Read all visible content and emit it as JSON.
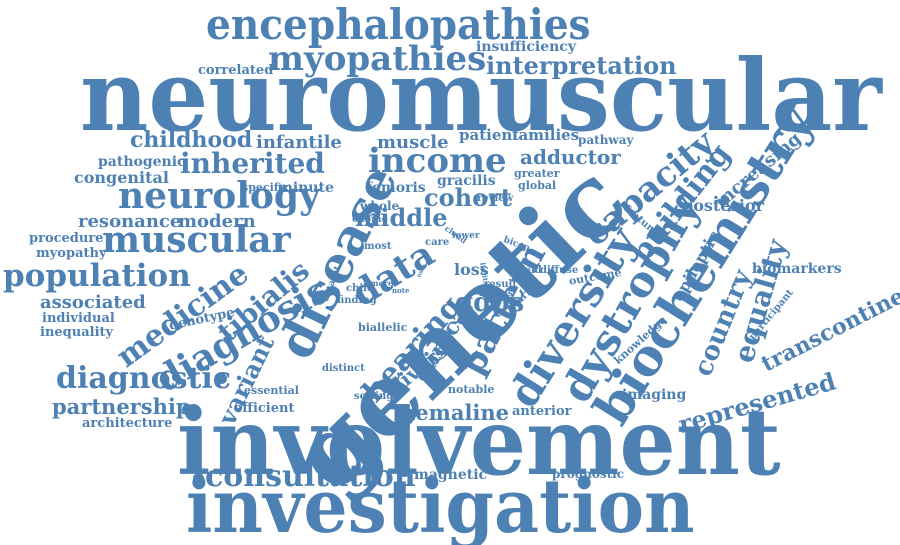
{
  "word_cloud": {
    "color": "#4d80b3",
    "words": {
      "neuromuscular": "neuromuscular",
      "genetic": "genetic",
      "involvement": "involvement",
      "investigation": "investigation",
      "encephalopathies": "encephalopathies",
      "biochemistry": "biochemistry",
      "disease": "disease",
      "dystrophy": "dystrophy",
      "diversity": "diversity",
      "myopathies": "myopathies",
      "neurology": "neurology",
      "muscular": "muscular",
      "income": "income",
      "inherited": "inherited",
      "population": "population",
      "diagnosis": "diagnosis",
      "medicine": "medicine",
      "diagnostic": "diagnostic",
      "consultation": "consultation",
      "interpretation": "interpretation",
      "childhood": "childhood",
      "capacity": "capacity",
      "building": "building",
      "pattern": "pattern",
      "data": "data",
      "tibialis": "tibialis",
      "hearing": "hearing",
      "country": "country",
      "equality": "equality",
      "represented": "represented",
      "transcontinental": "transcontinental",
      "partnership": "partnership",
      "nemaline": "nemaline",
      "variant": "variant",
      "cohort": "cohort",
      "middle": "middle",
      "adductor": "adductor",
      "ggps": "ggps",
      "muscle": "muscle",
      "infantile": "infantile",
      "congenital": "congenital",
      "resonance": "resonance",
      "modern": "modern",
      "associated": "associated",
      "clinical": "clinical",
      "diverse": "diverse",
      "magnetic": "magnetic",
      "epileptic": "epileptic",
      "increasing": "increasing",
      "posterior": "posterior",
      "biomarkers": "biomarkers",
      "insufficiency": "insufficiency",
      "correlated": "correlated",
      "patient": "patient",
      "families": "families",
      "pathway": "pathway",
      "pathogenic": "pathogenic",
      "specific": "specific",
      "minute": "minute",
      "femoris": "femoris",
      "gracilis": "gracilis",
      "greater": "greater",
      "global": "global",
      "procedure": "procedure",
      "myopathy": "myopathy",
      "genotype": "genotype",
      "individual": "individual",
      "inequality": "inequality",
      "architecture": "architecture",
      "efficient": "efficient",
      "essential": "essential",
      "distinct": "distinct",
      "setting": "setting",
      "notable": "notable",
      "anterior": "anterior",
      "prognostic": "prognostic",
      "imaging": "imaging",
      "knowledge": "knowledge",
      "participant": "participant",
      "outcome": "outcome",
      "feature": "feature",
      "whole": "whole",
      "exome": "exome",
      "most": "most",
      "care": "care",
      "lower": "lower",
      "cloud": "cloud",
      "review": "review",
      "bicep": "bicep",
      "dataset": "dataset",
      "child": "child",
      "more": "more",
      "finding": "finding",
      "note": "note",
      "biallelic": "biallelic",
      "loss": "loss",
      "result": "result",
      "longus": "longus",
      "ovarian": "ovarian",
      "yield": "yield",
      "diffuse": "diffuse",
      "uses": "uses",
      "limits": "limits"
    }
  }
}
